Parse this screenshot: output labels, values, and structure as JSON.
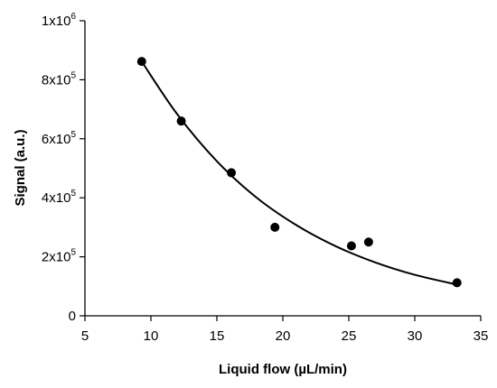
{
  "chart_data": {
    "type": "scatter",
    "title": "",
    "xlabel": "Liquid flow (µL/min)",
    "ylabel": "Signal (a.u.)",
    "xlim": [
      5,
      35
    ],
    "ylim": [
      0,
      1000000
    ],
    "x_ticks": [
      5,
      10,
      15,
      20,
      25,
      30,
      35
    ],
    "y_ticks": [
      {
        "value": 0,
        "mantissa": "0",
        "exp": ""
      },
      {
        "value": 200000,
        "mantissa": "2x10",
        "exp": "5"
      },
      {
        "value": 400000,
        "mantissa": "4x10",
        "exp": "5"
      },
      {
        "value": 600000,
        "mantissa": "6x10",
        "exp": "5"
      },
      {
        "value": 800000,
        "mantissa": "8x10",
        "exp": "5"
      },
      {
        "value": 1000000,
        "mantissa": "1x10",
        "exp": "6"
      }
    ],
    "grid": false,
    "legend": "none",
    "series": [
      {
        "type": "scatter",
        "marker_color": "#000000",
        "points": [
          {
            "x": 9.3,
            "y": 862000
          },
          {
            "x": 12.3,
            "y": 660000
          },
          {
            "x": 16.1,
            "y": 485000
          },
          {
            "x": 19.4,
            "y": 300000
          },
          {
            "x": 25.2,
            "y": 237000
          },
          {
            "x": 26.5,
            "y": 250000
          },
          {
            "x": 33.2,
            "y": 112000
          }
        ]
      },
      {
        "type": "line",
        "line_color": "#000000",
        "fit": "exponential",
        "points": [
          {
            "x": 9.3,
            "y": 862000
          },
          {
            "x": 12.0,
            "y": 683000
          },
          {
            "x": 15.0,
            "y": 524000
          },
          {
            "x": 18.0,
            "y": 401000
          },
          {
            "x": 21.0,
            "y": 308000
          },
          {
            "x": 24.0,
            "y": 236000
          },
          {
            "x": 27.0,
            "y": 181000
          },
          {
            "x": 30.0,
            "y": 139000
          },
          {
            "x": 33.2,
            "y": 106000
          }
        ]
      }
    ]
  }
}
